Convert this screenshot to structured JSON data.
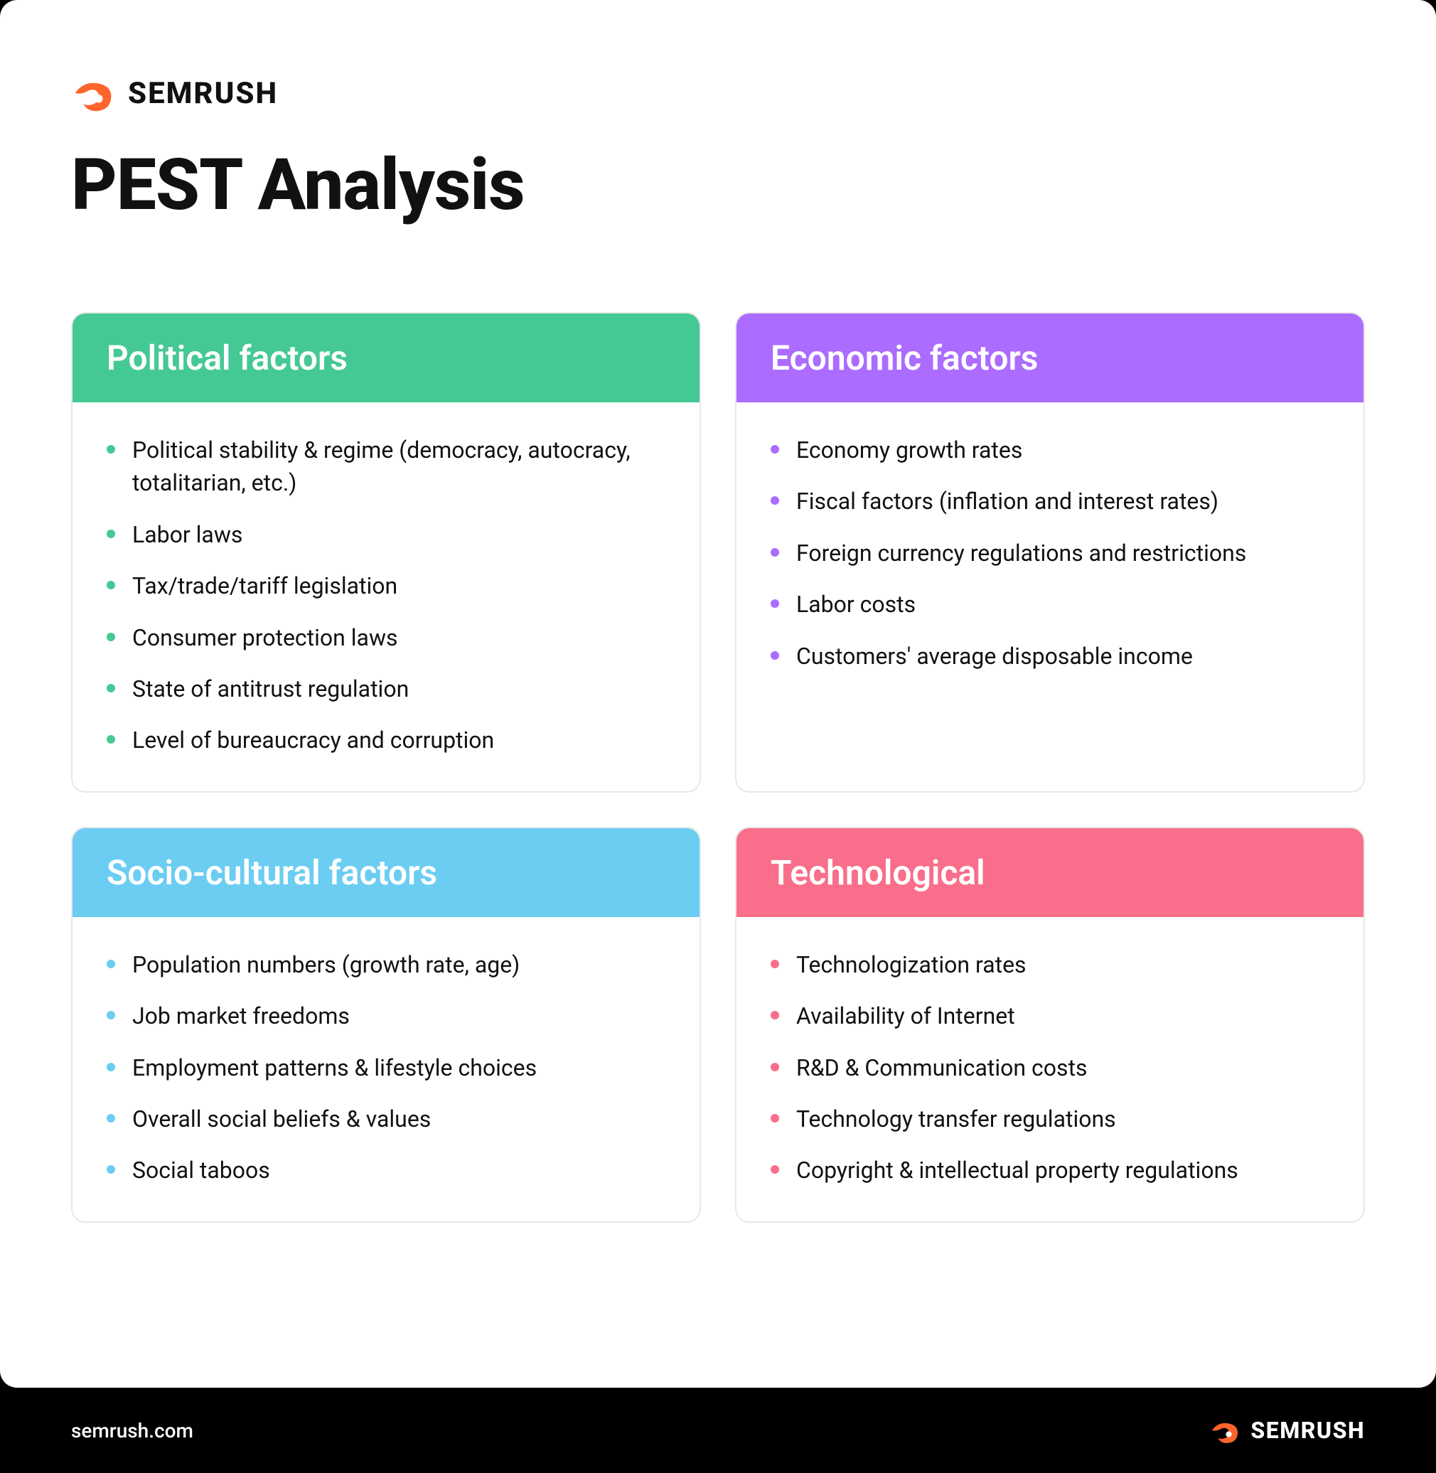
{
  "brand": {
    "name": "SEMRUSH",
    "logo_color": "#ff642d",
    "footer_url": "semrush.com"
  },
  "title": "PEST Analysis",
  "colors": {
    "page_bg": "#000000",
    "card_bg": "#ffffff",
    "card_border": "#e8e8e8",
    "text": "#111111",
    "footer_bg": "#000000",
    "footer_text": "#ffffff"
  },
  "layout": {
    "grid_columns": 2,
    "grid_gap": 48,
    "card_radius": 20
  },
  "typography": {
    "title_fontsize": 100,
    "title_fontweight": 800,
    "card_header_fontsize": 48,
    "card_header_fontweight": 600,
    "list_fontsize": 32,
    "logo_fontsize": 42,
    "footer_text_fontsize": 28,
    "footer_logo_fontsize": 32
  },
  "cards": [
    {
      "id": "political",
      "title": "Political factors",
      "header_color": "#45c994",
      "bullet_color": "#45c994",
      "items": [
        "Political stability & regime (democracy, autocracy, totalitarian, etc.)",
        "Labor laws",
        "Tax/trade/tariff legislation",
        "Consumer protection laws",
        "State of antitrust regulation",
        "Level of bureaucracy and corruption"
      ]
    },
    {
      "id": "economic",
      "title": "Economic factors",
      "header_color": "#ab6cff",
      "bullet_color": "#ab6cff",
      "items": [
        "Economy growth rates",
        "Fiscal factors (inflation and interest rates)",
        "Foreign currency regulations and restrictions",
        "Labor costs",
        "Customers' average disposable income"
      ]
    },
    {
      "id": "socio-cultural",
      "title": "Socio-cultural factors",
      "header_color": "#6bcdf2",
      "bullet_color": "#6bcdf2",
      "items": [
        "Population numbers (growth rate, age)",
        "Job market freedoms",
        "Employment patterns & lifestyle choices",
        "Overall social beliefs & values",
        "Social taboos"
      ]
    },
    {
      "id": "technological",
      "title": "Technological",
      "header_color": "#f96e8a",
      "bullet_color": "#f96e8a",
      "items": [
        "Technologization rates",
        "Availability of Internet",
        "R&D & Communication costs",
        "Technology transfer regulations",
        "Copyright & intellectual property regulations"
      ]
    }
  ]
}
